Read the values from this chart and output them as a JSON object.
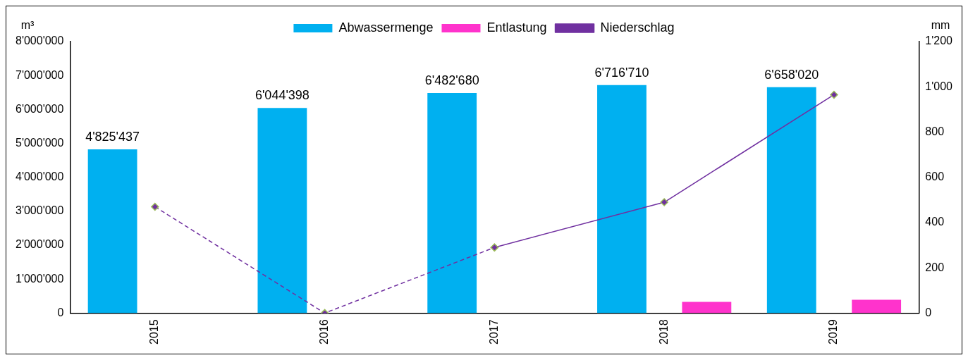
{
  "chart_data": {
    "type": "bar",
    "ylabel": "m³",
    "y2label": "mm",
    "categories": [
      "2015",
      "2016",
      "2017",
      "2018",
      "2019"
    ],
    "series": [
      {
        "name": "Abwassermenge",
        "color": "#00b0f0",
        "values": [
          4825437,
          6044398,
          6482680,
          6716710,
          6658020
        ],
        "value_labels": [
          "4'825'437",
          "6'044'398",
          "6'482'680",
          "6'716'710",
          "6'658'020"
        ]
      },
      {
        "name": "Entlastung",
        "color": "#ff33cc",
        "values": [
          null,
          null,
          null,
          330000,
          390000
        ]
      },
      {
        "name": "Niederschlag",
        "type": "line",
        "axis": "y2",
        "color": "#7030a0",
        "line_style": "solid",
        "values": [
          null,
          null,
          290,
          490,
          965
        ]
      },
      {
        "type": "line",
        "axis": "y2",
        "color": "#7030a0",
        "line_style": "dashed",
        "values": [
          470,
          0,
          290,
          null,
          null
        ]
      }
    ],
    "marker": "diamond",
    "ylim": [
      0,
      8000000
    ],
    "yticks": [
      0,
      {
        "value": 1000000,
        "label": "1'000'000"
      },
      {
        "value": 2000000,
        "label": "2'000'000"
      },
      {
        "value": 3000000,
        "label": "3'000'000"
      },
      {
        "value": 4000000,
        "label": "4'000'000"
      },
      {
        "value": 5000000,
        "label": "5'000'000"
      },
      {
        "value": 6000000,
        "label": "6'000'000"
      },
      {
        "value": 7000000,
        "label": "7'000'000"
      },
      {
        "value": 8000000,
        "label": "8'000'000"
      }
    ],
    "y2lim": [
      0,
      1200
    ],
    "y2ticks": [
      0,
      200,
      400,
      600,
      800,
      {
        "value": 1000,
        "label": "1'000"
      },
      {
        "value": 1200,
        "label": "1'200"
      }
    ],
    "grid": false,
    "legend": "top"
  }
}
